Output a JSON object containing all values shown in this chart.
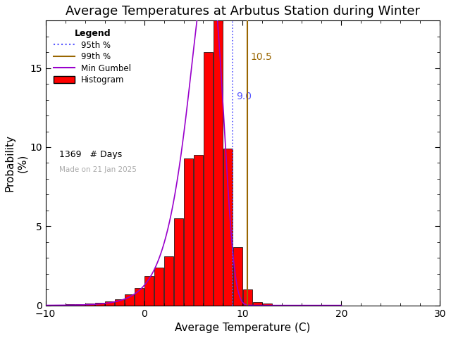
{
  "title": "Average Temperatures at Arbutus Station during Winter",
  "xlabel": "Average Temperature (C)",
  "ylabel": "Probability\n(%)",
  "xlim": [
    -10,
    30
  ],
  "ylim": [
    0,
    18
  ],
  "xticks": [
    -10,
    0,
    10,
    20,
    30
  ],
  "yticks": [
    0,
    5,
    10,
    15
  ],
  "bin_centers": [
    -7.5,
    -6.5,
    -5.5,
    -4.5,
    -3.5,
    -2.5,
    -1.5,
    -0.5,
    0.5,
    1.5,
    2.5,
    3.5,
    4.5,
    5.5,
    6.5,
    7.5,
    8.5,
    9.5,
    10.5,
    11.5,
    12.5,
    13.5,
    14.5
  ],
  "bin_heights": [
    0.07,
    0.07,
    0.1,
    0.15,
    0.25,
    0.4,
    0.7,
    1.1,
    1.85,
    2.4,
    3.1,
    5.5,
    9.3,
    9.5,
    16.0,
    18.0,
    9.9,
    3.7,
    1.0,
    0.2,
    0.1,
    0.05,
    0.0
  ],
  "bar_width": 0.95,
  "hist_color": "#ff0000",
  "hist_edgecolor": "#000000",
  "gumbel_mu": 6.5,
  "gumbel_beta": 1.7,
  "line_95th_x": 9.0,
  "line_99th_x": 10.5,
  "line_95th_color": "#5555ff",
  "line_99th_color": "#996600",
  "gumbel_color": "#9900cc",
  "n_days": 1369,
  "made_on": "Made on 21 Jan 2025",
  "annotation_95": "9.0",
  "annotation_99": "10.5",
  "background_color": "#ffffff",
  "title_fontsize": 13,
  "label_fontsize": 11,
  "tick_fontsize": 10
}
